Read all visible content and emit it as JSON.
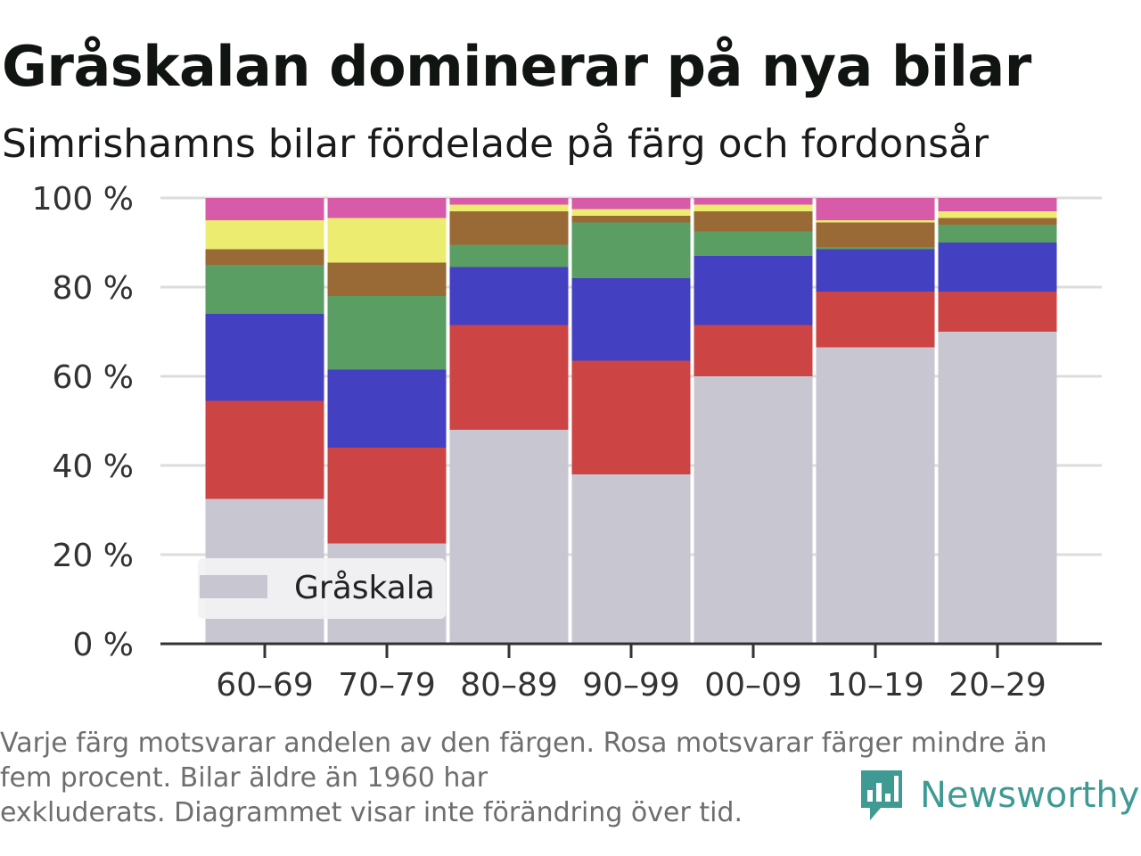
{
  "header": {
    "title": "Gråskalan dominerar på nya bilar",
    "subtitle": "Simrishamns bilar fördelade på färg och fordonsår"
  },
  "chart_data": {
    "type": "bar",
    "stacked": true,
    "categories": [
      "60–69",
      "70–79",
      "80–89",
      "90–99",
      "00–09",
      "10–19",
      "20–29"
    ],
    "series": [
      {
        "name": "Gråskala",
        "color": "#c8c6d1",
        "values": [
          32.5,
          22.5,
          48,
          38,
          60,
          66.5,
          70
        ]
      },
      {
        "color": "#cd4444",
        "values": [
          22,
          21.5,
          23.5,
          25.5,
          11.5,
          12.5,
          9
        ]
      },
      {
        "color": "#4440c2",
        "values": [
          19.5,
          17.5,
          13,
          18.5,
          15.5,
          9.5,
          11
        ]
      },
      {
        "color": "#5a9e63",
        "values": [
          11,
          16.5,
          5,
          12.5,
          5.5,
          0.5,
          4
        ]
      },
      {
        "color": "#996a35",
        "values": [
          3.5,
          7.5,
          7.5,
          1.5,
          4.5,
          5.5,
          1.5
        ]
      },
      {
        "color": "#eced70",
        "values": [
          6.5,
          10,
          1.5,
          1.5,
          1.5,
          0.5,
          1.5
        ]
      },
      {
        "color": "#d75ba8",
        "values": [
          5,
          4.5,
          1.5,
          2.5,
          1.5,
          5,
          3
        ]
      }
    ],
    "yticks": [
      "0 %",
      "20 %",
      "40 %",
      "60 %",
      "80 %",
      "100 %"
    ],
    "ylim": [
      0,
      100
    ],
    "grid": true,
    "legend": {
      "position": "bottom-left",
      "entries": [
        "Gråskala"
      ]
    }
  },
  "footnote": {
    "line1": "Varje färg motsvarar andelen av den färgen. Rosa motsvarar färger mindre än",
    "line2": "fem procent. Bilar äldre än 1960 har",
    "line3": "exkluderats. Diagrammet visar inte förändring över tid."
  },
  "brand": {
    "name": "Newsworthy",
    "icon": "newsworthy-logo-icon",
    "color": "#3f9a93"
  }
}
